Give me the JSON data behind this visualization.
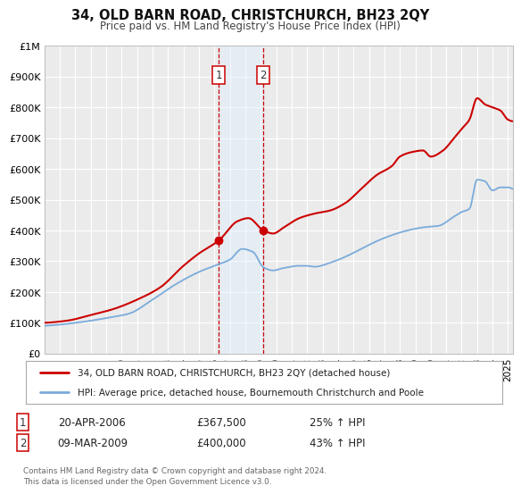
{
  "title": "34, OLD BARN ROAD, CHRISTCHURCH, BH23 2QY",
  "subtitle": "Price paid vs. HM Land Registry's House Price Index (HPI)",
  "background_color": "#ffffff",
  "plot_bg_color": "#ebebeb",
  "grid_color": "#ffffff",
  "ylim": [
    0,
    1000000
  ],
  "xlim_start": 1995.0,
  "xlim_end": 2025.3,
  "yticks": [
    0,
    100000,
    200000,
    300000,
    400000,
    500000,
    600000,
    700000,
    800000,
    900000,
    1000000
  ],
  "ytick_labels": [
    "£0",
    "£100K",
    "£200K",
    "£300K",
    "£400K",
    "£500K",
    "£600K",
    "£700K",
    "£800K",
    "£900K",
    "£1M"
  ],
  "sale1_x": 2006.29,
  "sale1_y": 367500,
  "sale2_x": 2009.18,
  "sale2_y": 400000,
  "sale1_date": "20-APR-2006",
  "sale1_price": "£367,500",
  "sale1_hpi": "25% ↑ HPI",
  "sale2_date": "09-MAR-2009",
  "sale2_price": "£400,000",
  "sale2_hpi": "43% ↑ HPI",
  "red_color": "#cc0000",
  "blue_color": "#7aabdb",
  "shade_color": "#ddeeff",
  "marker_color": "#cc0000",
  "legend1_label": "34, OLD BARN ROAD, CHRISTCHURCH, BH23 2QY (detached house)",
  "legend2_label": "HPI: Average price, detached house, Bournemouth Christchurch and Poole",
  "footer": "Contains HM Land Registry data © Crown copyright and database right 2024.\nThis data is licensed under the Open Government Licence v3.0.",
  "sale_dot_size": 50,
  "xticks": [
    1995,
    1996,
    1997,
    1998,
    1999,
    2000,
    2001,
    2002,
    2003,
    2004,
    2005,
    2006,
    2007,
    2008,
    2009,
    2010,
    2011,
    2012,
    2013,
    2014,
    2015,
    2016,
    2017,
    2018,
    2019,
    2020,
    2021,
    2022,
    2023,
    2024,
    2025
  ]
}
